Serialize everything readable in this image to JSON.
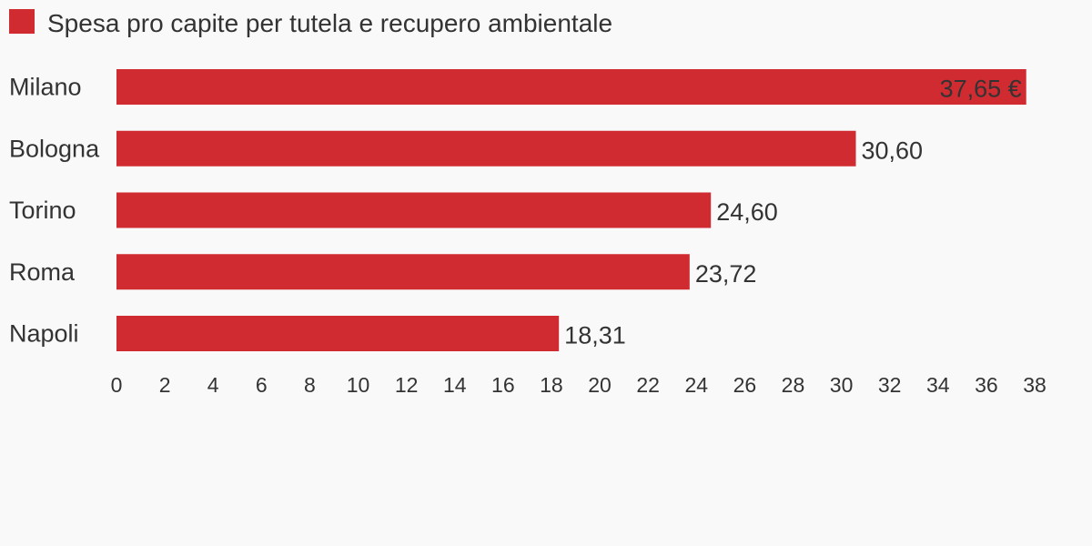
{
  "chart_data": {
    "type": "bar",
    "orientation": "horizontal",
    "categories": [
      "Milano",
      "Bologna",
      "Torino",
      "Roma",
      "Napoli"
    ],
    "series": [
      {
        "name": "Spesa pro capite per tutela e recupero ambientale",
        "values": [
          37.65,
          30.6,
          24.6,
          23.72,
          18.31
        ],
        "value_labels": [
          "37,65 €",
          "30,60",
          "24,60",
          "23,72",
          "18,31"
        ]
      }
    ],
    "xlim": [
      0,
      38
    ],
    "x_ticks": [
      "0",
      "2",
      "4",
      "6",
      "8",
      "10",
      "12",
      "14",
      "16",
      "18",
      "20",
      "22",
      "24",
      "26",
      "28",
      "30",
      "32",
      "34",
      "36",
      "38"
    ],
    "legend_position": "top-left",
    "grid": false,
    "colors": {
      "bar": "#d02b31",
      "text": "#333333",
      "background": "#f9f9f9"
    }
  }
}
